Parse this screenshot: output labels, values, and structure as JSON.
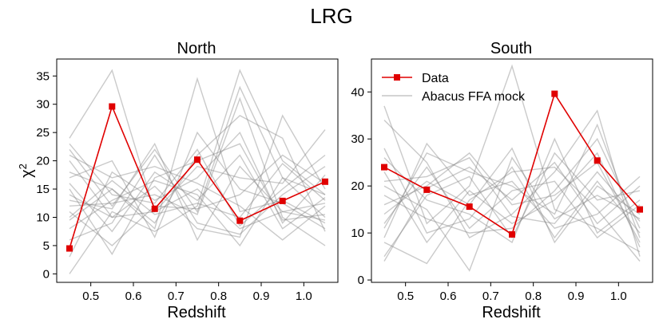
{
  "figure_title": "LRG",
  "colors": {
    "data": "#e00000",
    "mock": "#808080"
  },
  "chart_data": [
    {
      "type": "line",
      "panel": "North",
      "title": "North",
      "xlabel": "Redshift",
      "ylabel_base": "χ",
      "ylabel_sup": "2",
      "xlim": [
        0.42,
        1.08
      ],
      "ylim": [
        -1.5,
        38
      ],
      "xticks": [
        0.5,
        0.6,
        0.7,
        0.8,
        0.9,
        1.0
      ],
      "xtick_labels": [
        "0.5",
        "0.6",
        "0.7",
        "0.8",
        "0.9",
        "1.0"
      ],
      "yticks": [
        0,
        5,
        10,
        15,
        20,
        25,
        30,
        35
      ],
      "ytick_labels": [
        "0",
        "5",
        "10",
        "15",
        "20",
        "25",
        "30",
        "35"
      ],
      "x": [
        0.45,
        0.55,
        0.65,
        0.75,
        0.85,
        0.95,
        1.05
      ],
      "data_series": {
        "name": "Data",
        "values": [
          4.5,
          29.6,
          11.5,
          20.2,
          9.4,
          12.9,
          16.3
        ]
      },
      "mock_series_name": "Abacus FFA mock",
      "mocks": [
        [
          0.0,
          11.0,
          7.5,
          12.0,
          36.0,
          20.0,
          14.0
        ],
        [
          24.0,
          36.0,
          11.0,
          15.0,
          8.0,
          11.0,
          12.5
        ],
        [
          18.0,
          15.0,
          8.0,
          34.5,
          11.0,
          13.0,
          9.0
        ],
        [
          22.0,
          12.0,
          22.0,
          11.0,
          33.0,
          17.0,
          10.0
        ],
        [
          14.0,
          10.0,
          15.5,
          8.0,
          6.5,
          28.0,
          15.0
        ],
        [
          3.0,
          18.0,
          13.0,
          17.0,
          25.0,
          9.0,
          17.5
        ],
        [
          11.0,
          5.0,
          12.0,
          11.5,
          14.0,
          21.0,
          16.0
        ],
        [
          20.0,
          10.0,
          11.0,
          19.0,
          17.0,
          16.0,
          25.5
        ],
        [
          8.0,
          13.0,
          16.5,
          14.0,
          5.0,
          17.0,
          14.0
        ],
        [
          16.0,
          7.5,
          18.0,
          13.0,
          21.0,
          8.0,
          13.5
        ],
        [
          13.0,
          11.5,
          23.0,
          6.0,
          19.0,
          11.0,
          9.5
        ],
        [
          9.5,
          15.0,
          9.0,
          21.0,
          28.0,
          24.0,
          7.5
        ],
        [
          21.0,
          17.0,
          19.0,
          16.0,
          12.0,
          6.0,
          12.0
        ],
        [
          6.0,
          9.0,
          21.0,
          9.0,
          7.0,
          14.0,
          19.0
        ],
        [
          17.0,
          20.0,
          6.5,
          25.0,
          15.0,
          12.5,
          8.0
        ],
        [
          12.0,
          12.5,
          14.0,
          10.5,
          31.0,
          10.0,
          5.0
        ],
        [
          10.0,
          16.5,
          10.5,
          12.5,
          10.0,
          19.5,
          13.0
        ],
        [
          15.0,
          3.5,
          17.0,
          20.0,
          23.0,
          9.5,
          10.5
        ],
        [
          23.0,
          14.0,
          12.5,
          22.0,
          8.5,
          15.0,
          21.0
        ]
      ]
    },
    {
      "type": "line",
      "panel": "South",
      "title": "South",
      "xlabel": "Redshift",
      "xlim": [
        0.42,
        1.08
      ],
      "ylim": [
        -0.5,
        47
      ],
      "xticks": [
        0.5,
        0.6,
        0.7,
        0.8,
        0.9,
        1.0
      ],
      "xtick_labels": [
        "0.5",
        "0.6",
        "0.7",
        "0.8",
        "0.9",
        "1.0"
      ],
      "yticks": [
        0,
        10,
        20,
        30,
        40
      ],
      "ytick_labels": [
        "0",
        "10",
        "20",
        "30",
        "40"
      ],
      "x": [
        0.45,
        0.55,
        0.65,
        0.75,
        0.85,
        0.95,
        1.05
      ],
      "data_series": {
        "name": "Data",
        "values": [
          24.0,
          19.2,
          15.6,
          9.7,
          39.6,
          25.4,
          15.0
        ]
      },
      "mock_series_name": "Abacus FFA mock",
      "mocks": [
        [
          37.0,
          12.0,
          20.0,
          45.5,
          15.0,
          11.0,
          6.0
        ],
        [
          34.0,
          25.0,
          9.0,
          14.0,
          23.0,
          36.0,
          5.0
        ],
        [
          9.0,
          29.0,
          18.0,
          21.0,
          11.0,
          14.0,
          22.0
        ],
        [
          16.0,
          20.0,
          27.0,
          16.0,
          18.0,
          25.0,
          8.0
        ],
        [
          20.0,
          15.0,
          2.0,
          26.0,
          13.0,
          18.0,
          13.0
        ],
        [
          5.0,
          18.0,
          22.0,
          9.0,
          27.0,
          17.0,
          19.0
        ],
        [
          28.0,
          10.0,
          13.0,
          24.0,
          9.0,
          21.0,
          10.0
        ],
        [
          12.0,
          24.0,
          11.0,
          19.0,
          21.0,
          9.0,
          16.0
        ],
        [
          23.0,
          8.0,
          19.0,
          12.0,
          17.0,
          27.0,
          7.0
        ],
        [
          14.0,
          21.0,
          16.0,
          28.0,
          8.0,
          20.0,
          14.0
        ],
        [
          4.0,
          19.5,
          24.0,
          17.0,
          25.0,
          12.0,
          20.0
        ],
        [
          18.0,
          13.0,
          10.0,
          11.0,
          19.0,
          30.0,
          11.0
        ],
        [
          26.0,
          17.0,
          14.0,
          8.0,
          30.0,
          10.0,
          17.0
        ],
        [
          11.0,
          27.0,
          23.0,
          20.0,
          14.0,
          33.0,
          9.0
        ],
        [
          8.0,
          3.5,
          17.0,
          23.0,
          24.0,
          15.0,
          4.0
        ],
        [
          21.0,
          22.0,
          26.0,
          13.5,
          12.0,
          23.0,
          12.5
        ]
      ]
    }
  ],
  "legend": {
    "data_label": "Data",
    "mock_label": "Abacus FFA mock"
  }
}
